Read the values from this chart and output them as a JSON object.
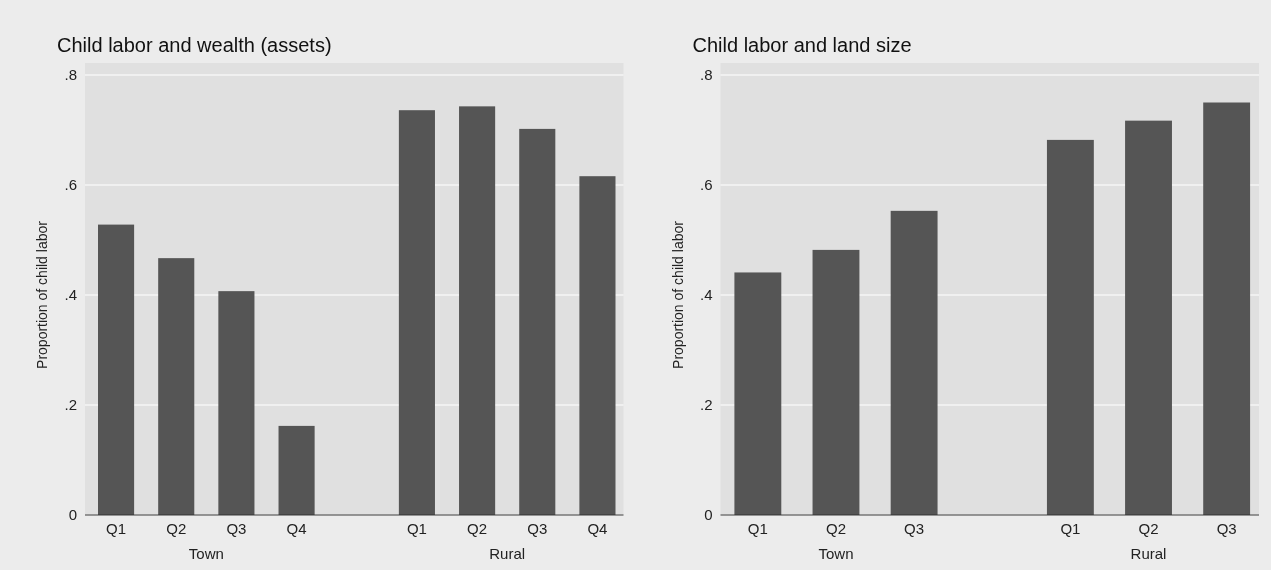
{
  "chart_data": [
    {
      "type": "bar",
      "title": "Child labor and wealth (assets)",
      "ylabel": "Proportion of child labor",
      "categories": [
        "Q1",
        "Q2",
        "Q3",
        "Q4",
        null,
        "Q1",
        "Q2",
        "Q3",
        "Q4"
      ],
      "values": [
        0.528,
        0.467,
        0.407,
        0.162,
        null,
        0.736,
        0.743,
        0.702,
        0.616
      ],
      "color": "#555555",
      "ylim": [
        0,
        0.8
      ],
      "yticks": [
        {
          "value": 0,
          "label": "0"
        },
        {
          "value": 0.2,
          "label": ".2"
        },
        {
          "value": 0.4,
          "label": ".4"
        },
        {
          "value": 0.6,
          "label": ".6"
        },
        {
          "value": 0.8,
          "label": ".8"
        }
      ],
      "grid": "y",
      "annotations": [
        "Town",
        "Rural"
      ]
    },
    {
      "type": "bar",
      "title": "Child labor and land size",
      "ylabel": "Proportion of child labor",
      "categories": [
        "Q1",
        "Q2",
        "Q3",
        null,
        "Q1",
        "Q2",
        "Q3"
      ],
      "values": [
        0.441,
        0.482,
        0.553,
        null,
        0.682,
        0.717,
        0.75
      ],
      "color": "#555555",
      "ylim": [
        0,
        0.8
      ],
      "yticks": [
        {
          "value": 0,
          "label": "0"
        },
        {
          "value": 0.2,
          "label": ".2"
        },
        {
          "value": 0.4,
          "label": ".4"
        },
        {
          "value": 0.6,
          "label": ".6"
        },
        {
          "value": 0.8,
          "label": ".8"
        }
      ],
      "grid": "y",
      "annotations": [
        "Town",
        "Rural"
      ]
    }
  ]
}
